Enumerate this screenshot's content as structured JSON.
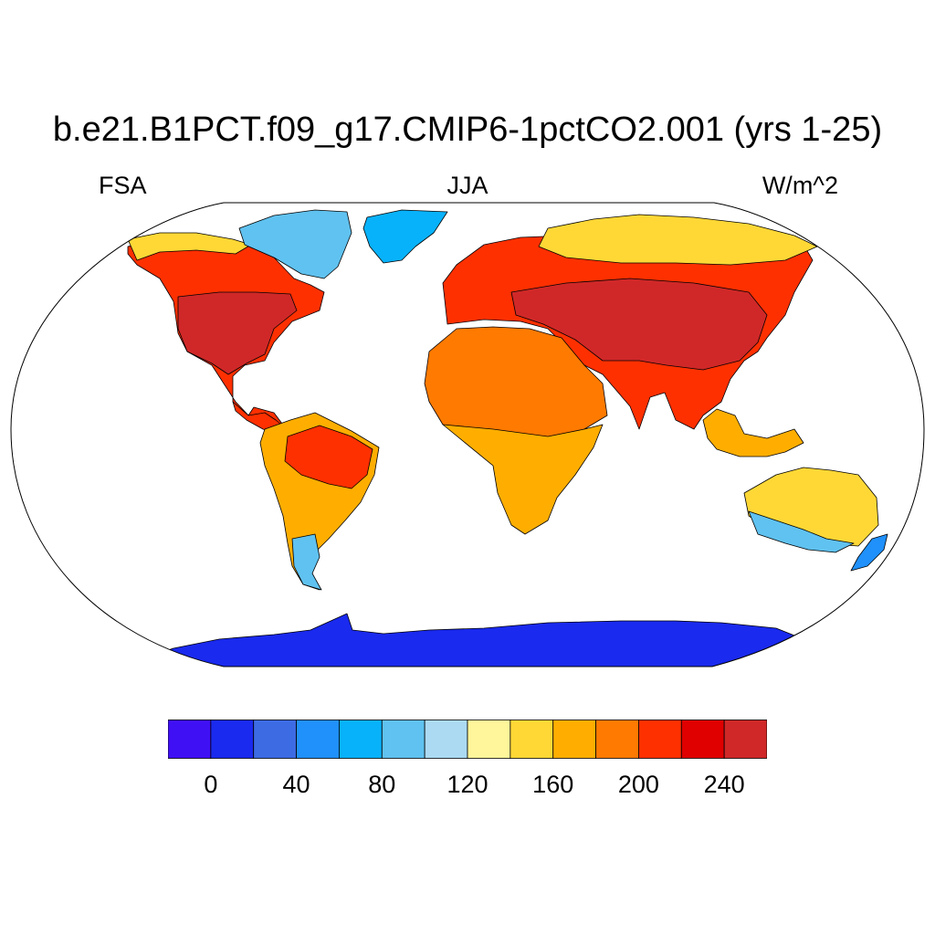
{
  "title": "b.e21.B1PCT.f09_g17.CMIP6-1pctCO2.001 (yrs 1-25)",
  "left_label": "FSA",
  "center_label": "JJA",
  "right_label": "W/m^2",
  "map": {
    "projection": "Robinson",
    "ocean_color": "#ffffff",
    "coastline_color": "#000000",
    "regions": [
      {
        "name": "north-america",
        "level": 11
      },
      {
        "name": "eastern-us",
        "level": 13
      },
      {
        "name": "alaska-canada-north",
        "level": 8
      },
      {
        "name": "canadian-archipelago",
        "level": 5
      },
      {
        "name": "greenland",
        "level": 4
      },
      {
        "name": "central-america",
        "level": 11
      },
      {
        "name": "south-america",
        "level": 9
      },
      {
        "name": "amazon",
        "level": 11
      },
      {
        "name": "patagonia",
        "level": 5
      },
      {
        "name": "europe-asia",
        "level": 11
      },
      {
        "name": "siberia",
        "level": 8
      },
      {
        "name": "central-asia",
        "level": 13
      },
      {
        "name": "north-africa",
        "level": 10
      },
      {
        "name": "africa-south",
        "level": 9
      },
      {
        "name": "australia",
        "level": 8
      },
      {
        "name": "australia-south",
        "level": 5
      },
      {
        "name": "new-zealand",
        "level": 3
      },
      {
        "name": "southeast-asia-islands",
        "level": 9
      },
      {
        "name": "antarctica",
        "level": 1
      }
    ]
  },
  "colorbar": {
    "colors": [
      "#4010F5",
      "#1A2AEE",
      "#3D6BE4",
      "#2090FA",
      "#08B2FB",
      "#60C2F0",
      "#ABDAF2",
      "#FFF59A",
      "#FFD836",
      "#FFAE00",
      "#FF7A00",
      "#FF3000",
      "#E00000",
      "#D02828"
    ],
    "labels": [
      {
        "text": "0",
        "index": 1
      },
      {
        "text": "40",
        "index": 3
      },
      {
        "text": "80",
        "index": 5
      },
      {
        "text": "120",
        "index": 7
      },
      {
        "text": "160",
        "index": 9
      },
      {
        "text": "200",
        "index": 11
      },
      {
        "text": "240",
        "index": 13
      }
    ]
  }
}
